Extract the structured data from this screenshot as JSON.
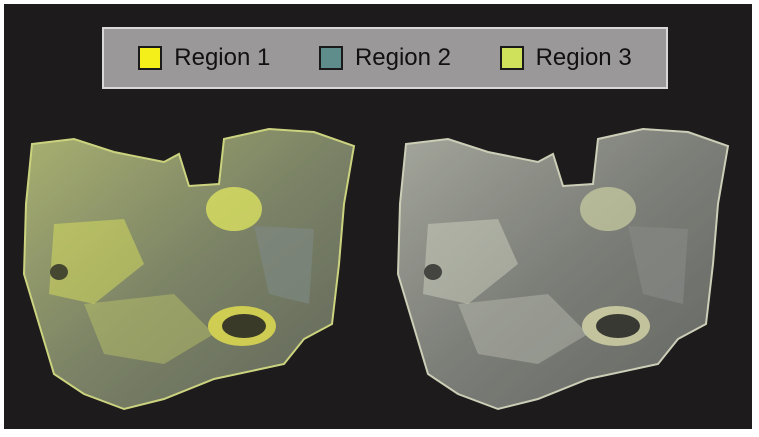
{
  "legend": {
    "items": [
      {
        "label": "Region 1",
        "color": "#f4ee1a"
      },
      {
        "label": "Region 2",
        "color": "#5e8d8b"
      },
      {
        "label": "Region 3",
        "color": "#cfe05a"
      }
    ]
  },
  "renders": [
    {
      "name": "left-render",
      "tint": "#c9d57a",
      "edge": "#e0e860"
    },
    {
      "name": "right-render",
      "tint": "#b9bcb0",
      "edge": "#dfe3b8"
    }
  ]
}
